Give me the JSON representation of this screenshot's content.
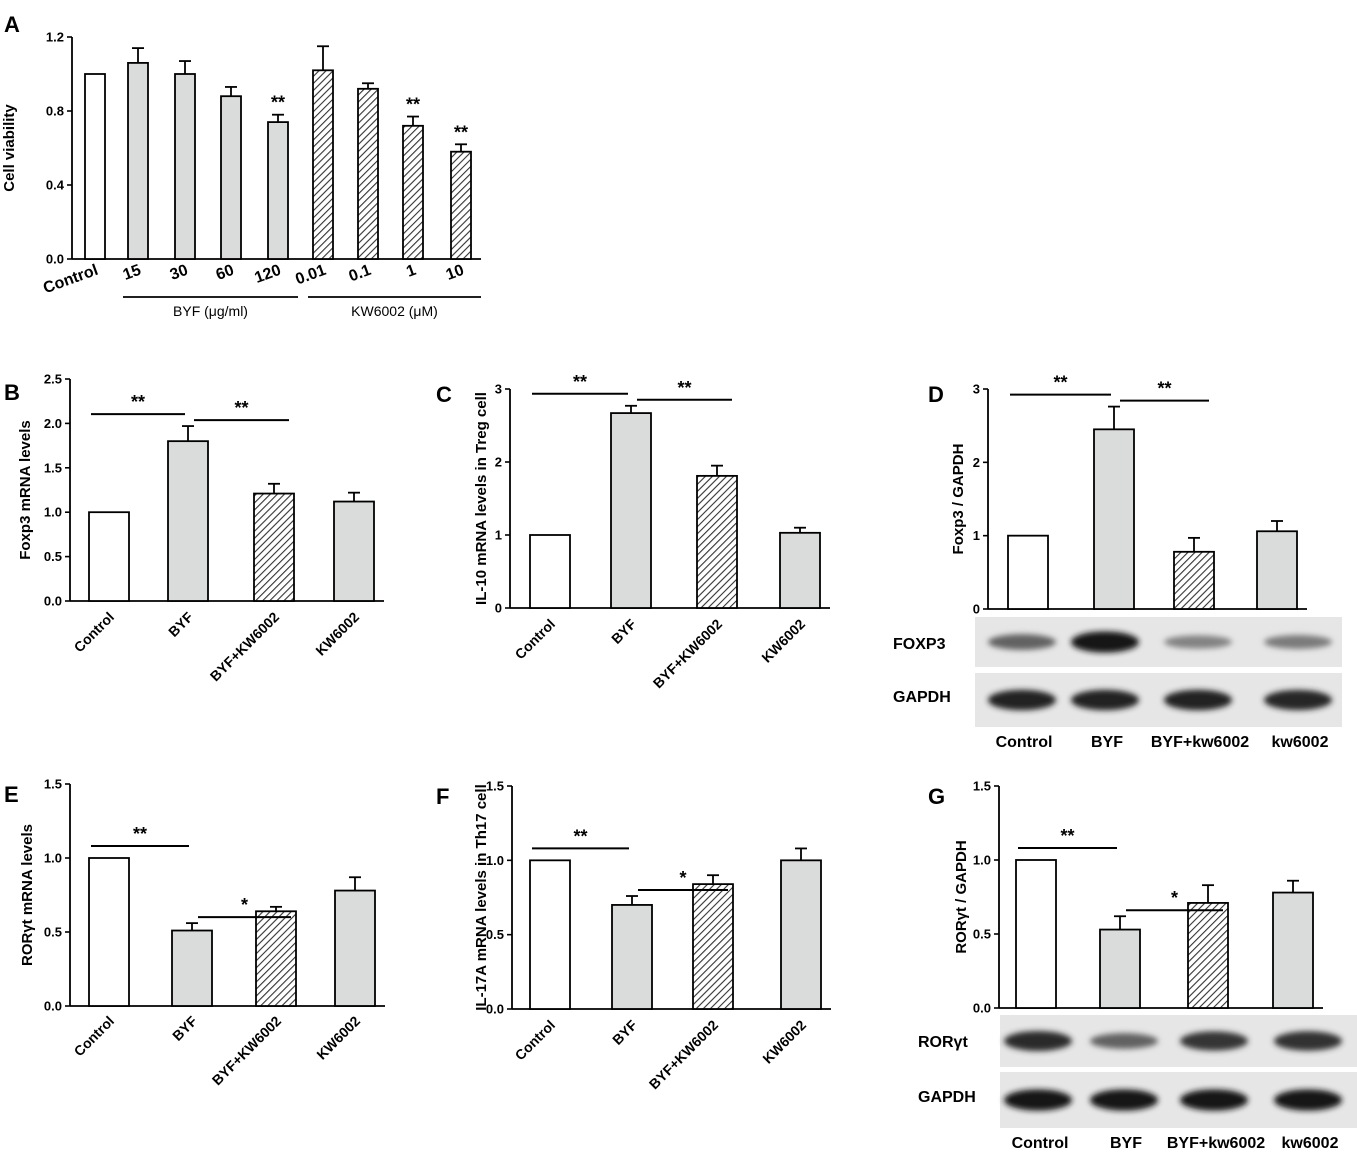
{
  "chart_data": [
    {
      "panel": "A",
      "type": "bar",
      "ylabel": "Cell viability",
      "ylim": [
        0,
        1.2
      ],
      "yticks": [
        "0.0",
        "0.4",
        "0.8",
        "1.2"
      ],
      "categories": [
        "Control",
        "15",
        "30",
        "60",
        "120",
        "0.01",
        "0.1",
        "1",
        "10"
      ],
      "values": [
        1.0,
        1.06,
        1.0,
        0.88,
        0.74,
        1.02,
        0.92,
        0.72,
        0.58
      ],
      "errors": [
        0,
        0.08,
        0.07,
        0.05,
        0.04,
        0.13,
        0.03,
        0.05,
        0.04
      ],
      "fills": [
        "white",
        "gray",
        "gray",
        "gray",
        "gray",
        "hatch",
        "hatch",
        "hatch",
        "hatch"
      ],
      "marks": [
        "",
        "",
        "",
        "",
        "**",
        "",
        "",
        "**",
        "**"
      ],
      "groups": [
        {
          "label": "BYF (μg/ml)",
          "from": 1,
          "to": 4
        },
        {
          "label": "KW6002 (μM)",
          "from": 5,
          "to": 8
        }
      ]
    },
    {
      "panel": "B",
      "type": "bar",
      "ylabel": "Foxp3 mRNA levels",
      "ylim": [
        0,
        2.5
      ],
      "yticks": [
        "0.0",
        "0.5",
        "1.0",
        "1.5",
        "2.0",
        "2.5"
      ],
      "categories": [
        "Control",
        "BYF",
        "BYF+KW6002",
        "KW6002"
      ],
      "values": [
        1.0,
        1.8,
        1.21,
        1.12
      ],
      "errors": [
        0,
        0.17,
        0.11,
        0.1
      ],
      "fills": [
        "white",
        "gray",
        "hatch",
        "gray"
      ],
      "comparisons": [
        {
          "from": 0,
          "to": 1,
          "label": "**"
        },
        {
          "from": 1,
          "to": 2,
          "label": "**"
        }
      ]
    },
    {
      "panel": "C",
      "type": "bar",
      "ylabel": "IL-10 mRNA levels in Treg cell",
      "ylim": [
        0,
        3
      ],
      "yticks": [
        "0",
        "1",
        "2",
        "3"
      ],
      "categories": [
        "Control",
        "BYF",
        "BYF+KW6002",
        "KW6002"
      ],
      "values": [
        1.0,
        2.67,
        1.81,
        1.03
      ],
      "errors": [
        0,
        0.1,
        0.14,
        0.07
      ],
      "fills": [
        "white",
        "gray",
        "hatch",
        "gray"
      ],
      "comparisons": [
        {
          "from": 0,
          "to": 1,
          "label": "**"
        },
        {
          "from": 1,
          "to": 2,
          "label": "**"
        }
      ]
    },
    {
      "panel": "D",
      "type": "bar",
      "ylabel": "Foxp3 / GAPDH",
      "ylim": [
        0,
        3
      ],
      "yticks": [
        "0",
        "1",
        "2",
        "3"
      ],
      "categories": [
        "Control",
        "BYF",
        "BYF+kw6002",
        "kw6002"
      ],
      "values": [
        1.0,
        2.45,
        0.78,
        1.06
      ],
      "errors": [
        0,
        0.31,
        0.19,
        0.14
      ],
      "fills": [
        "white",
        "gray",
        "hatch",
        "gray"
      ],
      "comparisons": [
        {
          "from": 0,
          "to": 1,
          "label": "**"
        },
        {
          "from": 1,
          "to": 2,
          "label": "**"
        }
      ],
      "blot_rows": [
        "FOXP3",
        "GAPDH"
      ],
      "blot_intensity": [
        [
          0.55,
          0.95,
          0.38,
          0.42
        ],
        [
          0.9,
          0.9,
          0.9,
          0.88
        ]
      ]
    },
    {
      "panel": "E",
      "type": "bar",
      "ylabel": "RORγt mRNA levels",
      "ylim": [
        0,
        1.5
      ],
      "yticks": [
        "0.0",
        "0.5",
        "1.0",
        "1.5"
      ],
      "categories": [
        "Control",
        "BYF",
        "BYF+KW6002",
        "KW6002"
      ],
      "values": [
        1.0,
        0.51,
        0.64,
        0.78
      ],
      "errors": [
        0,
        0.05,
        0.03,
        0.09
      ],
      "fills": [
        "white",
        "gray",
        "hatch",
        "gray"
      ],
      "comparisons": [
        {
          "from": 0,
          "to": 1,
          "label": "**"
        },
        {
          "from": 1,
          "to": 2,
          "label": "*"
        }
      ]
    },
    {
      "panel": "F",
      "type": "bar",
      "ylabel": "IL-17A mRNA levels in Th17 cell",
      "ylim": [
        0,
        1.5
      ],
      "yticks": [
        "0.0",
        "0.5",
        "1.0",
        "1.5"
      ],
      "categories": [
        "Control",
        "BYF",
        "BYF+KW6002",
        "KW6002"
      ],
      "values": [
        1.0,
        0.7,
        0.84,
        1.0
      ],
      "errors": [
        0,
        0.06,
        0.06,
        0.08
      ],
      "fills": [
        "white",
        "gray",
        "hatch",
        "gray"
      ],
      "comparisons": [
        {
          "from": 0,
          "to": 1,
          "label": "**"
        },
        {
          "from": 1,
          "to": 2,
          "label": "*"
        }
      ]
    },
    {
      "panel": "G",
      "type": "bar",
      "ylabel": "RORγt / GAPDH",
      "ylim": [
        0,
        1.5
      ],
      "yticks": [
        "0.0",
        "0.5",
        "1.0",
        "1.5"
      ],
      "categories": [
        "Control",
        "BYF",
        "BYF+kw6002",
        "kw6002"
      ],
      "values": [
        1.0,
        0.53,
        0.71,
        0.78
      ],
      "errors": [
        0,
        0.09,
        0.12,
        0.08
      ],
      "fills": [
        "white",
        "gray",
        "hatch",
        "gray"
      ],
      "comparisons": [
        {
          "from": 0,
          "to": 1,
          "label": "**"
        },
        {
          "from": 1,
          "to": 2,
          "label": "*"
        }
      ],
      "blot_rows": [
        "RORγt",
        "GAPDH"
      ],
      "blot_intensity": [
        [
          0.85,
          0.55,
          0.8,
          0.82
        ],
        [
          0.95,
          0.95,
          0.95,
          0.95
        ]
      ]
    }
  ]
}
